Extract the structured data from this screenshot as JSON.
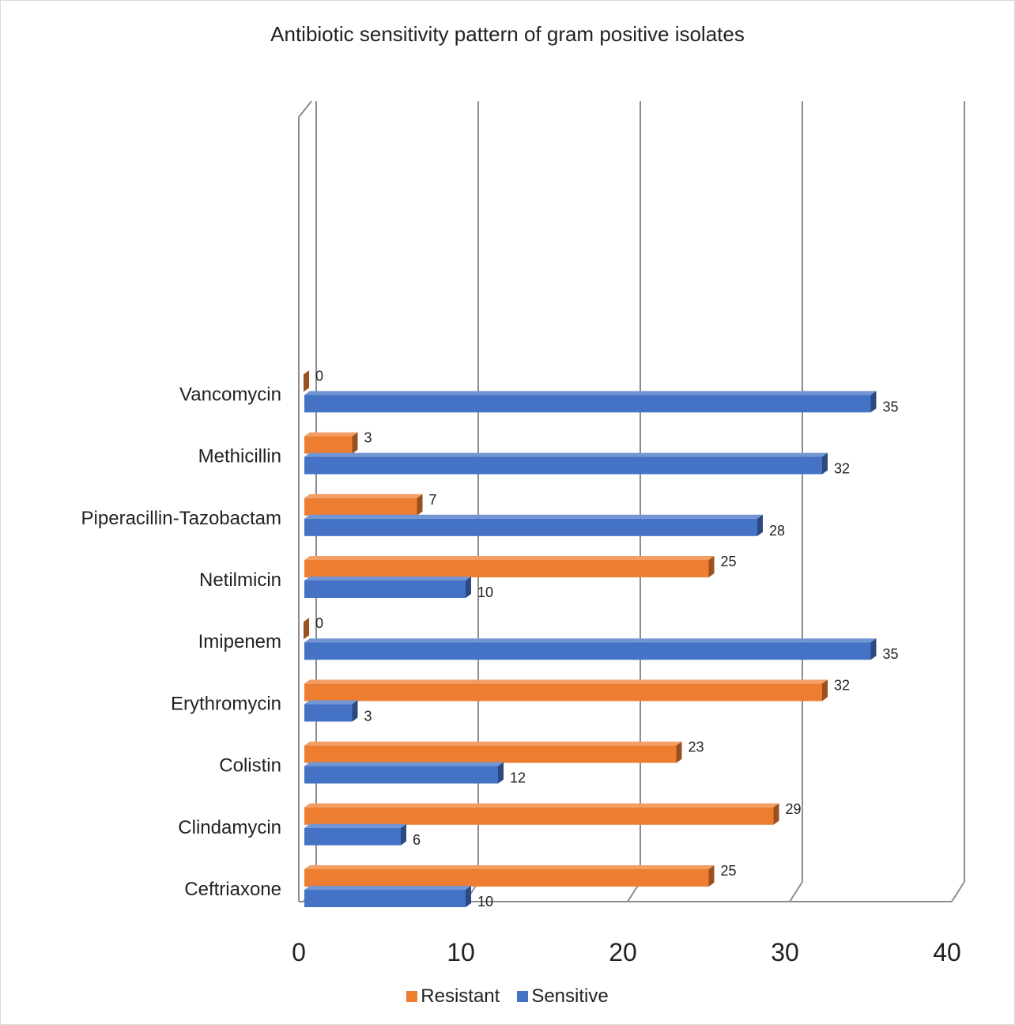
{
  "chart_data": {
    "type": "bar",
    "orientation": "horizontal",
    "style": "3d-clustered",
    "title": "Antibiotic sensitivity pattern of gram positive isolates",
    "xlabel": "",
    "ylabel": "",
    "xlim": [
      0,
      40
    ],
    "x_ticks": [
      "0",
      "10",
      "20",
      "30",
      "40"
    ],
    "grid": true,
    "legend_position": "bottom",
    "categories": [
      "Ceftriaxone",
      "Clindamycin",
      "Colistin",
      "Erythromycin",
      "Imipenem",
      "Netilmicin",
      "Piperacillin-Tazobactam",
      "Methicillin",
      "Vancomycin"
    ],
    "series": [
      {
        "name": "Resistant",
        "color": "#ED7D31",
        "values": [
          25,
          29,
          23,
          32,
          0,
          25,
          7,
          3,
          0
        ]
      },
      {
        "name": "Sensitive",
        "color": "#4472C4",
        "values": [
          10,
          6,
          12,
          3,
          35,
          10,
          28,
          32,
          35
        ]
      }
    ],
    "data_labels": true
  }
}
